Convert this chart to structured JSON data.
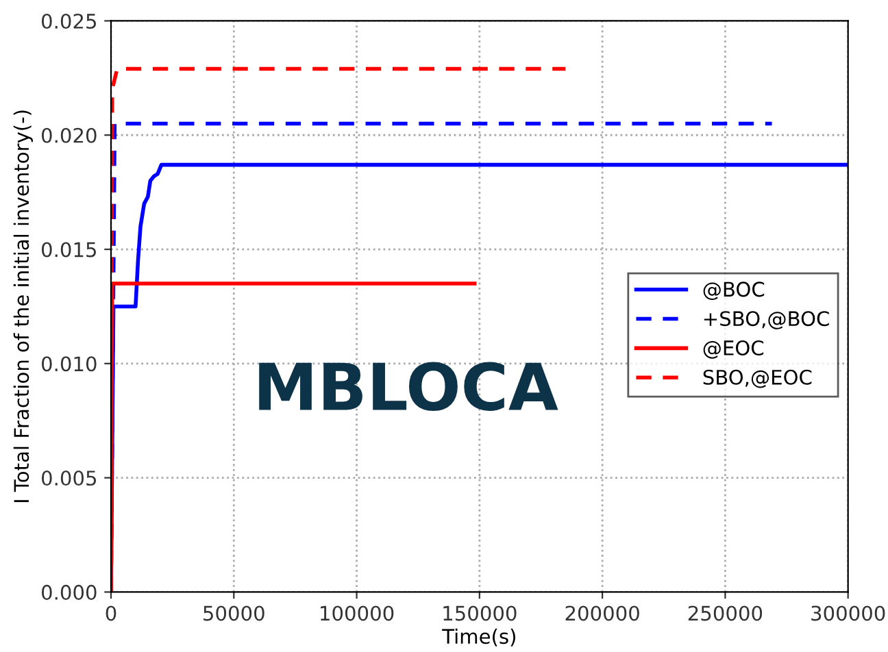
{
  "chart_data": {
    "type": "line",
    "xlabel": "Time(s)",
    "ylabel": "I Total Fraction of the initial inventory(-)",
    "xlim": [
      0,
      300000
    ],
    "xticks": [
      0,
      50000,
      100000,
      150000,
      200000,
      250000,
      300000
    ],
    "ylim": [
      0,
      0.025
    ],
    "yticks": [
      {
        "value": 0,
        "label": "0.000"
      },
      {
        "value": 0.005,
        "label": "0.005"
      },
      {
        "value": 0.01,
        "label": "0.010"
      },
      {
        "value": 0.015,
        "label": "0.015"
      },
      {
        "value": 0.02,
        "label": "0.020"
      },
      {
        "value": 0.025,
        "label": "0.025"
      }
    ],
    "grid": true,
    "legend": "right",
    "annotations": [
      "MBLOCA"
    ],
    "series": [
      {
        "name": "@BOC",
        "color": "#0000ff",
        "line_style": "solid",
        "x": [
          0,
          1000,
          10000,
          11000,
          12000,
          13500,
          15000,
          16000,
          17500,
          19000,
          20500,
          300000
        ],
        "values": [
          0,
          0.0125,
          0.0125,
          0.0145,
          0.016,
          0.017,
          0.0173,
          0.018,
          0.0182,
          0.0183,
          0.0187,
          0.0187
        ]
      },
      {
        "name": "+SBO,@BOC",
        "color": "#0000ff",
        "line_style": "dashed",
        "x": [
          0,
          1500,
          269000
        ],
        "values": [
          0,
          0.0205,
          0.0205
        ]
      },
      {
        "name": "@EOC",
        "color": "#ff0000",
        "line_style": "solid",
        "x": [
          0,
          500,
          148000
        ],
        "values": [
          0,
          0.0135,
          0.0135
        ]
      },
      {
        "name": "SBO,@EOC",
        "color": "#ff0000",
        "line_style": "dashed",
        "x": [
          0,
          500,
          2500,
          185000
        ],
        "values": [
          0,
          0.022,
          0.0229,
          0.0229
        ]
      }
    ]
  }
}
